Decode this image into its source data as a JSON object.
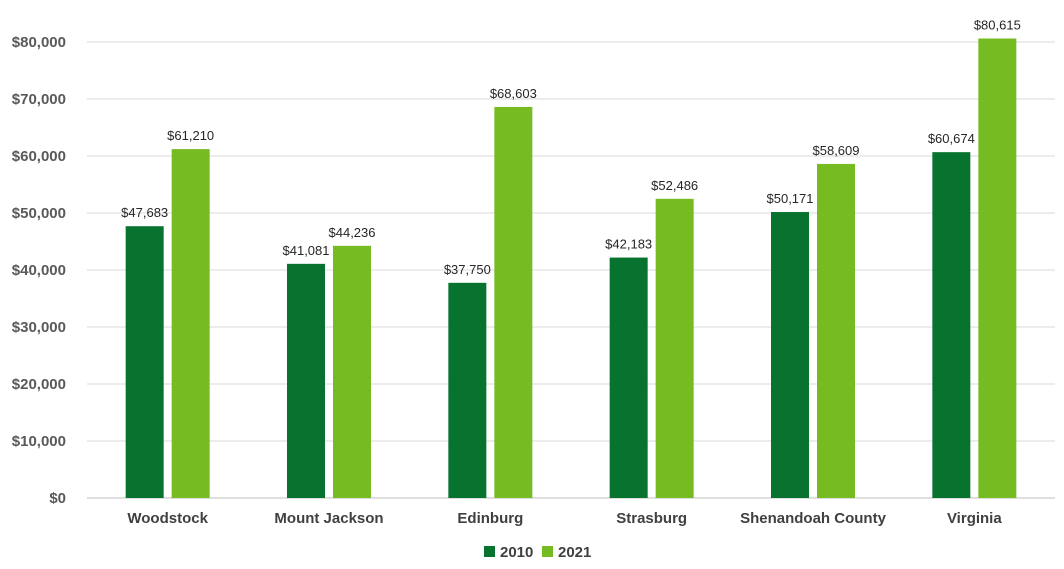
{
  "chart_data": {
    "type": "bar",
    "title": "",
    "xlabel": "",
    "ylabel": "",
    "categories": [
      "Woodstock",
      "Mount Jackson",
      "Edinburg",
      "Strasburg",
      "Shenandoah County",
      "Virginia"
    ],
    "series": [
      {
        "name": "2010",
        "color": "#08722f",
        "values": [
          47683,
          41081,
          37750,
          42183,
          50171,
          60674
        ],
        "labels": [
          "$47,683",
          "$41,081",
          "$37,750",
          "$42,183",
          "$50,171",
          "$60,674"
        ]
      },
      {
        "name": "2021",
        "color": "#77bb22",
        "values": [
          61210,
          44236,
          68603,
          52486,
          58609,
          80615
        ],
        "labels": [
          "$61,210",
          "$44,236",
          "$68,603",
          "$52,486",
          "$58,609",
          "$80,615"
        ]
      }
    ],
    "ylim": [
      0,
      80000
    ],
    "yticks": [
      0,
      10000,
      20000,
      30000,
      40000,
      50000,
      60000,
      70000,
      80000
    ],
    "ytick_labels": [
      "$0",
      "$10,000",
      "$20,000",
      "$30,000",
      "$40,000",
      "$50,000",
      "$60,000",
      "$70,000",
      "$80,000"
    ],
    "grid": true,
    "legend": "bottom-center"
  }
}
